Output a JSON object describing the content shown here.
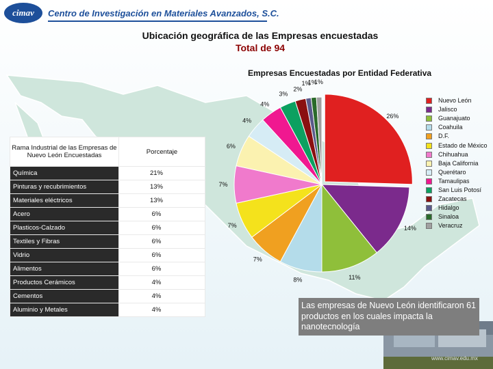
{
  "header": {
    "logo_text": "cimav",
    "institution": "Centro de Investigación en Materiales Avanzados, S.C."
  },
  "title": {
    "line1": "Ubicación geográfica de las Empresas encuestadas",
    "line2": "Total de 94"
  },
  "table": {
    "headers": [
      "Rama Industrial de las Empresas de Nuevo León Encuestadas",
      "Porcentaje"
    ],
    "rows": [
      {
        "rama": "Química",
        "porcentaje": "21%"
      },
      {
        "rama": "Pinturas y recubrimientos",
        "porcentaje": "13%"
      },
      {
        "rama": "Materiales eléctricos",
        "porcentaje": "13%"
      },
      {
        "rama": "Acero",
        "porcentaje": "6%"
      },
      {
        "rama": "Plasticos-Calzado",
        "porcentaje": "6%"
      },
      {
        "rama": "Textiles y Fibras",
        "porcentaje": "6%"
      },
      {
        "rama": "Vidrio",
        "porcentaje": "6%"
      },
      {
        "rama": "Alimentos",
        "porcentaje": "6%"
      },
      {
        "rama": "Productos Cerámicos",
        "porcentaje": "4%"
      },
      {
        "rama": "Cementos",
        "porcentaje": "4%"
      },
      {
        "rama": "Aluminio y Metales",
        "porcentaje": "4%"
      }
    ]
  },
  "note": "Las empresas de Nuevo León identificaron 61 productos en los cuales impacta la nanotecnología",
  "url": "www.cimav.edu.mx",
  "chart_data": {
    "type": "pie",
    "title": "Empresas Encuestadas por Entidad Federativa",
    "legend_position": "right",
    "slices": [
      {
        "label": "Nuevo León",
        "value": 26,
        "display": "26%",
        "color": "#e02020"
      },
      {
        "label": "Jalisco",
        "value": 14,
        "display": "14%",
        "color": "#7b2a8c"
      },
      {
        "label": "Guanajuato",
        "value": 11,
        "display": "11%",
        "color": "#8fbf3a"
      },
      {
        "label": "Coahuila",
        "value": 8,
        "display": "8%",
        "color": "#b4dcea"
      },
      {
        "label": "D.F.",
        "value": 7,
        "display": "7%",
        "color": "#f0a020"
      },
      {
        "label": "Estado de México",
        "value": 7,
        "display": "7%",
        "color": "#f4e21c"
      },
      {
        "label": "Chihuahua",
        "value": 7,
        "display": "7%",
        "color": "#f07acc"
      },
      {
        "label": "Baja California",
        "value": 6,
        "display": "6%",
        "color": "#fbf2b0"
      },
      {
        "label": "Querétaro",
        "value": 4,
        "display": "4%",
        "color": "#d6ecf5"
      },
      {
        "label": "Tamaulipas",
        "value": 4,
        "display": "4%",
        "color": "#f01890"
      },
      {
        "label": "San Luis Potosí",
        "value": 3,
        "display": "3%",
        "color": "#0ca060"
      },
      {
        "label": "Zacatecas",
        "value": 2,
        "display": "2%",
        "color": "#8a1010"
      },
      {
        "label": "Hidalgo",
        "value": 1,
        "display": "1%",
        "color": "#5a5a8a"
      },
      {
        "label": "Sinaloa",
        "value": 1,
        "display": "1%",
        "color": "#2a6a2a"
      },
      {
        "label": "Veracruz",
        "value": 1,
        "display": "1%",
        "color": "#a0a0a0"
      }
    ]
  }
}
